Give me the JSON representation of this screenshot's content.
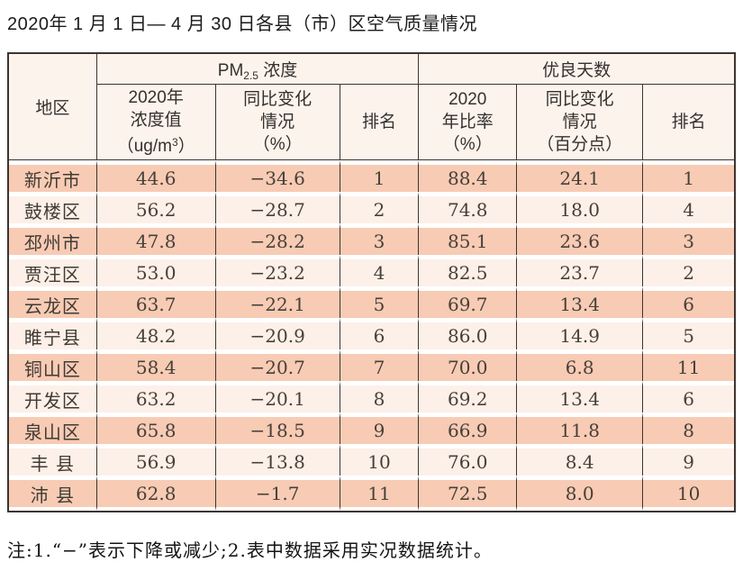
{
  "title": "2020年 1 月 1 日— 4 月 30 日各县（市）区空气质量情况",
  "note": "注:1.“−”表示下降或减少;2.表中数据采用实况数据统计。",
  "colors": {
    "row_salmon": "#f8cbb4",
    "row_light": "#fdf0e8",
    "header_bg": "#fcf3ec",
    "grid_border": "#3d3430"
  },
  "table": {
    "headers": {
      "region": "地区",
      "pm_group": {
        "pre": "PM",
        "sub": "2.5",
        "post": " 浓度"
      },
      "good_group": "优良天数",
      "pm_conc": {
        "l1": "2020年",
        "l2": "浓度值",
        "l3a": "（ug/m",
        "sup": "3",
        "l3b": "）"
      },
      "pm_change": {
        "l1": "同比变化",
        "l2": "情况",
        "l3": "（%）"
      },
      "pm_rank": "排名",
      "ratio": {
        "l1": "2020",
        "l2": "年比率",
        "l3": "（%）"
      },
      "days_change": {
        "l1": "同比变化",
        "l2": "情况",
        "l3": "（百分点）"
      },
      "days_rank": "排名"
    },
    "rows": [
      {
        "region": "新沂市",
        "pm_value": "44.6",
        "pm_change": "−34.6",
        "pm_rank": "1",
        "ratio": "88.4",
        "days_change": "24.1",
        "days_rank": "1"
      },
      {
        "region": "鼓楼区",
        "pm_value": "56.2",
        "pm_change": "−28.7",
        "pm_rank": "2",
        "ratio": "74.8",
        "days_change": "18.0",
        "days_rank": "4"
      },
      {
        "region": "邳州市",
        "pm_value": "47.8",
        "pm_change": "−28.2",
        "pm_rank": "3",
        "ratio": "85.1",
        "days_change": "23.6",
        "days_rank": "3"
      },
      {
        "region": "贾汪区",
        "pm_value": "53.0",
        "pm_change": "−23.2",
        "pm_rank": "4",
        "ratio": "82.5",
        "days_change": "23.7",
        "days_rank": "2"
      },
      {
        "region": "云龙区",
        "pm_value": "63.7",
        "pm_change": "−22.1",
        "pm_rank": "5",
        "ratio": "69.7",
        "days_change": "13.4",
        "days_rank": "6"
      },
      {
        "region": "睢宁县",
        "pm_value": "48.2",
        "pm_change": "−20.9",
        "pm_rank": "6",
        "ratio": "86.0",
        "days_change": "14.9",
        "days_rank": "5"
      },
      {
        "region": "铜山区",
        "pm_value": "58.4",
        "pm_change": "−20.7",
        "pm_rank": "7",
        "ratio": "70.0",
        "days_change": "6.8",
        "days_rank": "11"
      },
      {
        "region": "开发区",
        "pm_value": "63.2",
        "pm_change": "−20.1",
        "pm_rank": "8",
        "ratio": "69.2",
        "days_change": "13.4",
        "days_rank": "6"
      },
      {
        "region": "泉山区",
        "pm_value": "65.8",
        "pm_change": "−18.5",
        "pm_rank": "9",
        "ratio": "66.9",
        "days_change": "11.8",
        "days_rank": "8"
      },
      {
        "region": "丰 县",
        "pm_value": "56.9",
        "pm_change": "−13.8",
        "pm_rank": "10",
        "ratio": "76.0",
        "days_change": "8.4",
        "days_rank": "9"
      },
      {
        "region": "沛 县",
        "pm_value": "62.8",
        "pm_change": "−1.7",
        "pm_rank": "11",
        "ratio": "72.5",
        "days_change": "8.0",
        "days_rank": "10"
      }
    ]
  }
}
